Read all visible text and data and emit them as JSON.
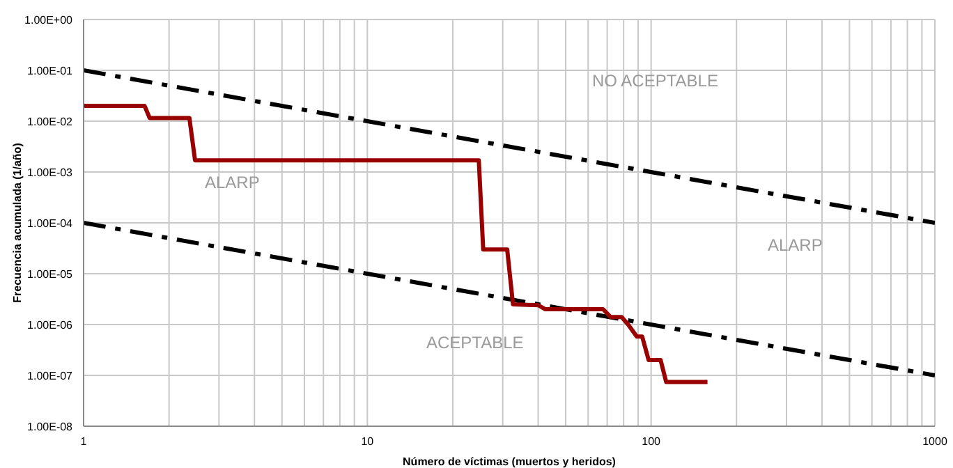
{
  "chart_data": {
    "type": "line",
    "xlabel": "Número de víctimas (muertos y heridos)",
    "ylabel": "Frecuencia acumulada (1/año)",
    "log": "xy",
    "grid": true,
    "xlim": [
      1,
      1000
    ],
    "xticks": [
      1,
      {
        "value": 2,
        "label": null
      },
      {
        "value": 3,
        "label": null
      },
      {
        "value": 4,
        "label": null
      },
      {
        "value": 5,
        "label": null
      },
      {
        "value": 6,
        "label": null
      },
      {
        "value": 7,
        "label": null
      },
      {
        "value": 8,
        "label": null
      },
      {
        "value": 9,
        "label": null
      },
      10,
      {
        "value": 20,
        "label": null
      },
      {
        "value": 30,
        "label": null
      },
      {
        "value": 40,
        "label": null
      },
      {
        "value": 50,
        "label": null
      },
      {
        "value": 60,
        "label": null
      },
      {
        "value": 70,
        "label": null
      },
      {
        "value": 80,
        "label": null
      },
      {
        "value": 90,
        "label": null
      },
      100,
      {
        "value": 200,
        "label": null
      },
      {
        "value": 300,
        "label": null
      },
      {
        "value": 400,
        "label": null
      },
      {
        "value": 500,
        "label": null
      },
      {
        "value": 600,
        "label": null
      },
      {
        "value": 700,
        "label": null
      },
      {
        "value": 800,
        "label": null
      },
      {
        "value": 900,
        "label": null
      },
      1000
    ],
    "ylim": [
      1e-08,
      1
    ],
    "yticks": [
      {
        "value": 1e-08,
        "label": "1.00E-08"
      },
      {
        "value": 1e-07,
        "label": "1.00E-07"
      },
      {
        "value": 1e-06,
        "label": "1.00E-06"
      },
      {
        "value": 1e-05,
        "label": "1.00E-05"
      },
      {
        "value": 0.0001,
        "label": "1.00E-04"
      },
      {
        "value": 0.001,
        "label": "1.00E-03"
      },
      {
        "value": 0.01,
        "label": "1.00E-02"
      },
      {
        "value": 0.1,
        "label": "1.00E-01"
      },
      {
        "value": 1,
        "label": "1.00E+00"
      }
    ],
    "series": [
      {
        "color": "#000000",
        "line_style": "dashed",
        "x": [
          1,
          1000
        ],
        "values": [
          0.1,
          0.0001
        ]
      },
      {
        "color": "#000000",
        "line_style": "dashed",
        "x": [
          1,
          1000
        ],
        "values": [
          0.0001,
          1e-07
        ]
      },
      {
        "color": "#990000",
        "line_style": "solid",
        "x": [
          1,
          1.64,
          1.71,
          2.36,
          2.47,
          24.7,
          25.6,
          31.1,
          32.6,
          40,
          42.4,
          67.7,
          72,
          78.7,
          83,
          89,
          93,
          98,
          108,
          113,
          158
        ],
        "values": [
          0.02,
          0.02,
          0.0115,
          0.0115,
          0.0017,
          0.0017,
          3e-05,
          3e-05,
          2.5e-06,
          2.4e-06,
          2e-06,
          2e-06,
          1.4e-06,
          1.4e-06,
          1e-06,
          5.8e-07,
          5.8e-07,
          2e-07,
          2e-07,
          7.4e-08,
          7.4e-08
        ]
      }
    ],
    "annotations": [
      "NO ACEPTABLE",
      "ALARP",
      "ALARP",
      "ACEPTABLE"
    ]
  }
}
